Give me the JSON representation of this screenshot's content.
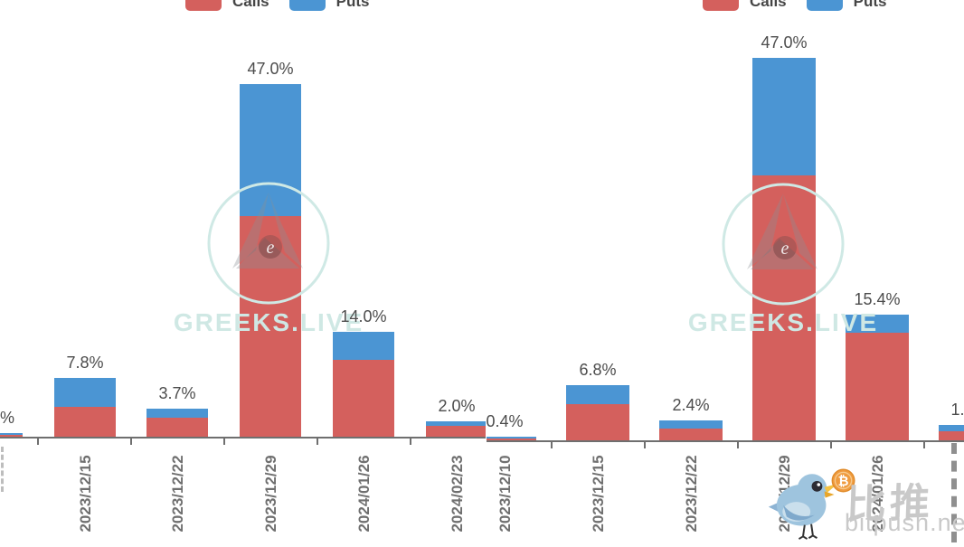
{
  "watermark": {
    "logo_text": "GREEKS.LIVE",
    "logo_letter": "e"
  },
  "footer_watermark": {
    "brand_cn": "比推",
    "brand_domain": "bitpush.news",
    "bird_icon": "twitter-bird-with-bitcoin-icon",
    "coin_symbol": "₿"
  },
  "colors": {
    "calls": "#d4605d",
    "puts": "#4b95d3",
    "axis": "#6f6f6f",
    "total_label": "#4c4c4c",
    "date_label": "#6f6f6f",
    "watermark_teal": "#cfe8e4",
    "coin_orange": "#ef9b3f",
    "bird_blue": "#9ec4de"
  },
  "chart_data": [
    {
      "type": "bar",
      "stacked": true,
      "title": "",
      "xlabel": "",
      "ylabel": "",
      "legend_position": "top",
      "legend": [
        "Calls",
        "Puts"
      ],
      "categories": [
        "",
        "2023/12/15",
        "2023/12/22",
        "2023/12/29",
        "2024/01/26",
        "2024/02/23"
      ],
      "series": [
        {
          "name": "Calls",
          "color": "#d4605d",
          "values": [
            0.25,
            4.0,
            2.5,
            29.4,
            10.2,
            1.5
          ]
        },
        {
          "name": "Puts",
          "color": "#4b95d3",
          "values": [
            0.2,
            3.8,
            1.2,
            17.6,
            3.8,
            0.5
          ]
        }
      ],
      "total_labels": [
        "%",
        "7.8%",
        "3.7%",
        "47.0%",
        "14.0%",
        "2.0%"
      ],
      "note": "first category clipped at left edge of image; y-axis not visible",
      "ylim": [
        0,
        52
      ]
    },
    {
      "type": "bar",
      "stacked": true,
      "title": "",
      "xlabel": "",
      "ylabel": "",
      "legend_position": "top",
      "legend": [
        "Calls",
        "Puts"
      ],
      "categories": [
        "2023/12/10",
        "2023/12/15",
        "2023/12/22",
        "2023/12/29",
        "2024/01/26",
        ""
      ],
      "series": [
        {
          "name": "Calls",
          "color": "#d4605d",
          "values": [
            0.2,
            4.4,
            1.4,
            32.6,
            13.2,
            1.1
          ]
        },
        {
          "name": "Puts",
          "color": "#4b95d3",
          "values": [
            0.2,
            2.4,
            1.0,
            14.4,
            2.2,
            0.8
          ]
        }
      ],
      "total_labels": [
        "0.4%",
        "6.8%",
        "2.4%",
        "47.0%",
        "15.4%",
        "1."
      ],
      "note": "last category clipped at right edge of image; y-axis not visible",
      "ylim": [
        0,
        52
      ]
    }
  ]
}
